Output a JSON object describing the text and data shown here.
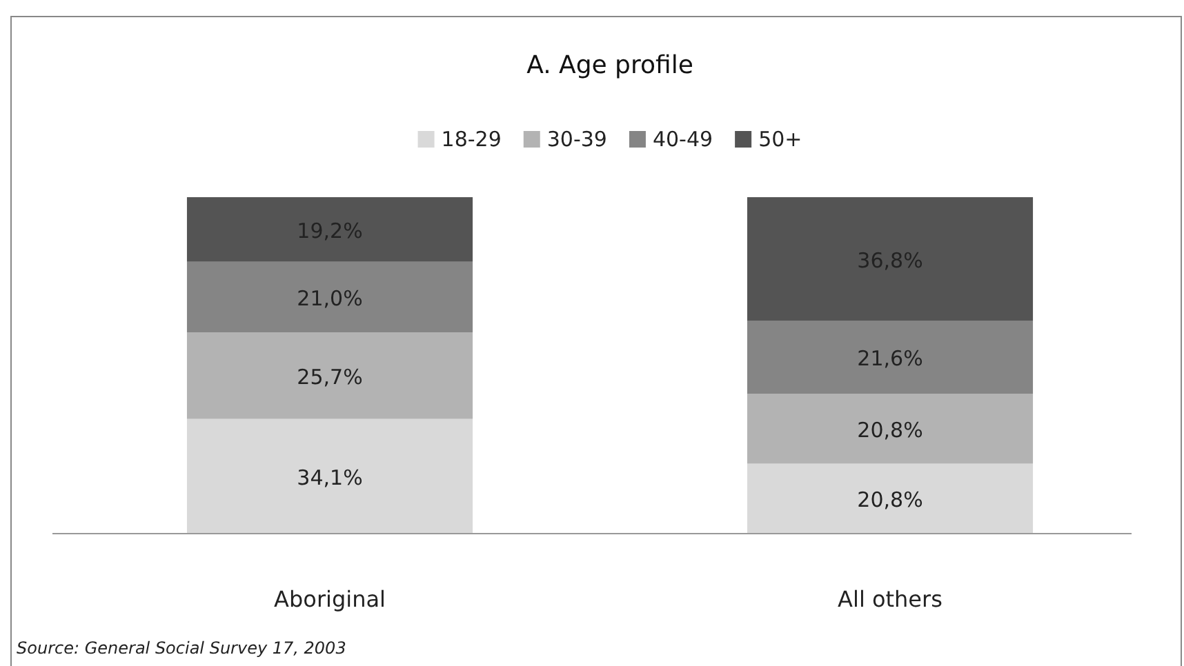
{
  "chart_data": {
    "type": "bar",
    "stacked": true,
    "title": "A. Age profile",
    "categories": [
      "Aboriginal",
      "All others"
    ],
    "series": [
      {
        "name": "18-29",
        "color": "#d9d9d9",
        "values": [
          34.1,
          20.8
        ],
        "value_labels": [
          "34,1%",
          "20,8%"
        ]
      },
      {
        "name": "30-39",
        "color": "#b3b3b3",
        "values": [
          25.7,
          20.8
        ],
        "value_labels": [
          "25,7%",
          "20,8%"
        ]
      },
      {
        "name": "40-49",
        "color": "#858585",
        "values": [
          21.0,
          21.6
        ],
        "value_labels": [
          "21,0%",
          "21,6%"
        ]
      },
      {
        "name": "50+",
        "color": "#545454",
        "values": [
          19.2,
          36.8
        ],
        "value_labels": [
          "19,2%",
          "36,8%"
        ]
      }
    ],
    "ylim": [
      0,
      100
    ],
    "tick_labels": "x",
    "legend": "top",
    "annotations": [
      "Source: General Social Survey 17, 2003"
    ]
  }
}
